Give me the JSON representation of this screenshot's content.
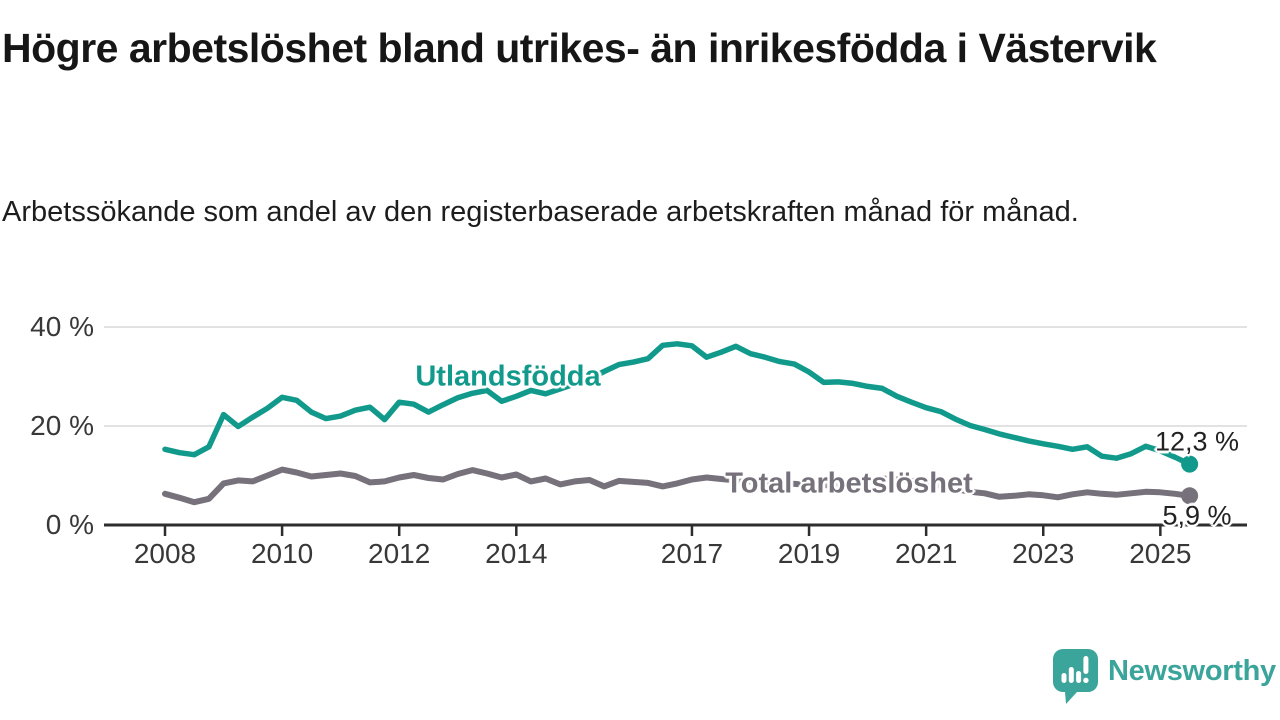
{
  "header": {
    "title": "Högre arbetslöshet bland utrikes- än inrikesfödda i Västervik",
    "subtitle": "Arbetssökande som andel av den registerbaserade arbetskraften månad för månad."
  },
  "chart_data": {
    "type": "line",
    "title": "Högre arbetslöshet bland utrikes- än inrikesfödda i Västervik",
    "subtitle": "Arbetssökande som andel av den registerbaserade arbetskraften månad för månad.",
    "xlabel": "",
    "ylabel": "",
    "x_start_year": 2008,
    "points_per_year": 4,
    "x_end": 2025.5,
    "ylim": [
      0,
      44
    ],
    "grid": "horizontal",
    "legend": "inline-labels",
    "yticks": [
      {
        "value": 40,
        "label": "40 %"
      },
      {
        "value": 20,
        "label": "20 %"
      },
      {
        "value": 0,
        "label": "0 %"
      }
    ],
    "xticks": [
      2008,
      2010,
      2012,
      2014,
      2017,
      2019,
      2021,
      2023,
      2025
    ],
    "series": [
      {
        "name": "Utlandsfödda",
        "color": "#119a8b",
        "end_label": "12,3 %",
        "end_value": 12.3,
        "values": [
          15.3,
          14.6,
          14.2,
          15.8,
          22.3,
          19.9,
          21.8,
          23.6,
          25.8,
          25.2,
          22.8,
          21.5,
          22.0,
          23.2,
          23.8,
          21.3,
          24.8,
          24.4,
          22.8,
          24.3,
          25.7,
          26.6,
          27.2,
          25.0,
          26.0,
          27.2,
          26.5,
          27.5,
          28.5,
          29.5,
          31.0,
          32.4,
          32.9,
          33.6,
          36.3,
          36.6,
          36.2,
          33.9,
          34.9,
          36.1,
          34.6,
          33.9,
          33.0,
          32.5,
          30.9,
          28.8,
          28.9,
          28.6,
          28.0,
          27.6,
          26.0,
          24.8,
          23.7,
          22.9,
          21.4,
          20.1,
          19.3,
          18.4,
          17.7,
          17.0,
          16.4,
          15.9,
          15.3,
          15.8,
          13.9,
          13.5,
          14.4,
          15.9,
          15.0,
          13.7,
          12.3
        ]
      },
      {
        "name": "Total arbetslöshet",
        "color": "#76717a",
        "end_label": "5,9 %",
        "end_value": 5.9,
        "values": [
          6.3,
          5.5,
          4.6,
          5.3,
          8.4,
          9.0,
          8.8,
          10.0,
          11.2,
          10.6,
          9.8,
          10.1,
          10.4,
          9.9,
          8.6,
          8.8,
          9.6,
          10.1,
          9.5,
          9.2,
          10.3,
          11.1,
          10.4,
          9.6,
          10.2,
          8.8,
          9.4,
          8.2,
          8.8,
          9.1,
          7.8,
          8.9,
          8.7,
          8.5,
          7.8,
          8.4,
          9.2,
          9.6,
          9.3,
          9.0,
          8.8,
          8.6,
          8.4,
          8.3,
          8.1,
          8.0,
          8.2,
          8.4,
          8.8,
          9.4,
          9.2,
          8.9,
          8.4,
          7.9,
          7.3,
          6.7,
          6.4,
          5.7,
          5.9,
          6.2,
          6.0,
          5.6,
          6.2,
          6.6,
          6.3,
          6.1,
          6.4,
          6.7,
          6.6,
          6.3,
          5.9
        ]
      }
    ],
    "axis_color": "#2d2d2d",
    "grid_color": "#d9d9d9"
  },
  "footer": {
    "brand": "Newsworthy",
    "brand_color": "#3ba49b",
    "brand_icon": "newsworthy-speech-bubble-bar-chart-icon"
  }
}
